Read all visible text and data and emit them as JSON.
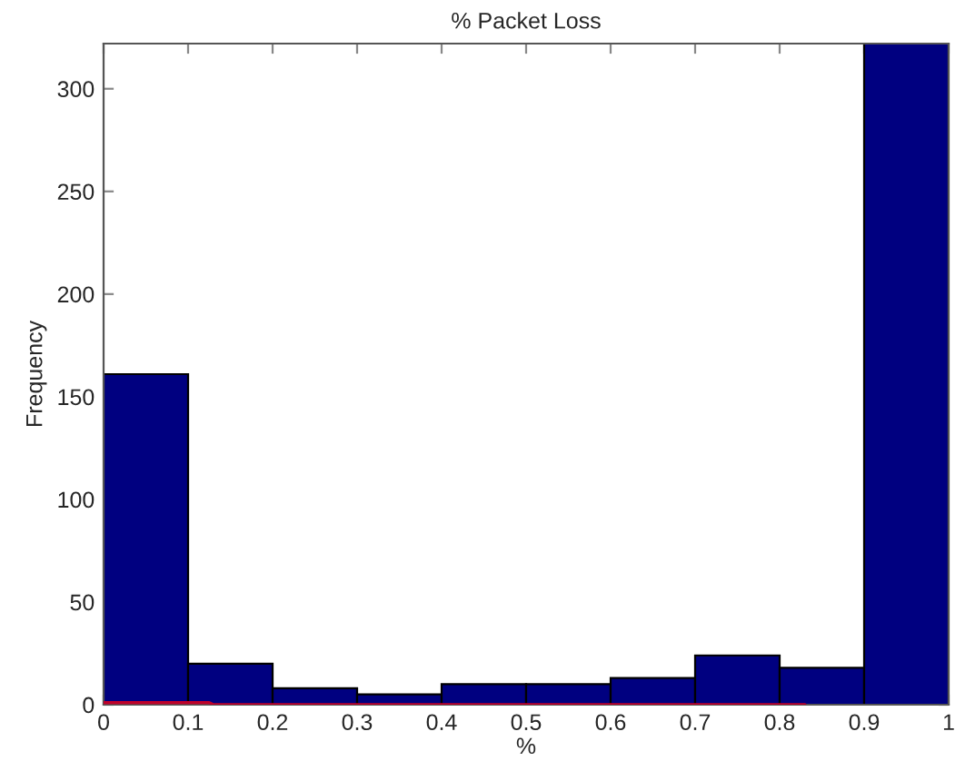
{
  "chart_data": {
    "type": "histogram",
    "title": "% Packet Loss",
    "xlabel": "%",
    "ylabel": "Frequency",
    "bins": [
      0,
      0.1,
      0.2,
      0.3,
      0.4,
      0.5,
      0.6,
      0.7,
      0.8,
      0.9,
      1
    ],
    "values": [
      161,
      20,
      8,
      5,
      10,
      10,
      13,
      24,
      18,
      322
    ],
    "color": "#000080",
    "series": [
      {
        "type": "line",
        "color": "#c0002a",
        "x": [
          0,
          0.125,
          0.13,
          0.83
        ],
        "values": [
          1,
          1,
          0,
          0
        ]
      }
    ],
    "xlim": [
      0,
      1
    ],
    "ylim": [
      0,
      322
    ],
    "xticks": [
      0,
      0.1,
      0.2,
      0.3,
      0.4,
      0.5,
      0.6,
      0.7,
      0.8,
      0.9,
      1
    ],
    "yticks": [
      0,
      50,
      100,
      150,
      200,
      250,
      300
    ],
    "grid": false
  }
}
